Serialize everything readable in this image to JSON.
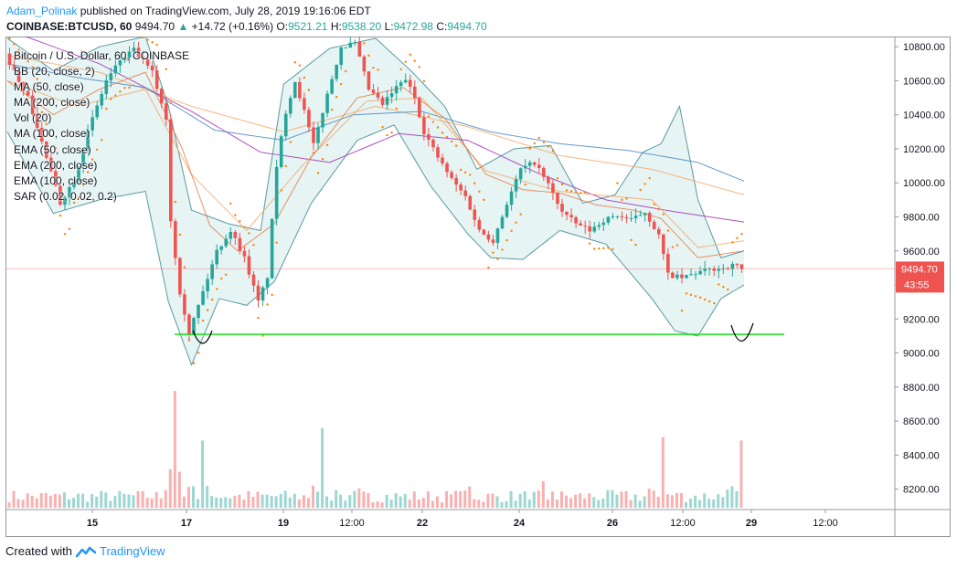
{
  "header": {
    "author": "Adam_Polinak",
    "published": "published on TradingView.com, July 28, 2019 19:16:06 EDT"
  },
  "ticker": {
    "symbol": "COINBASE:BTCUSD, 60",
    "last": "9494.70",
    "change": "+14.72 (+0.16%)",
    "open_label": "O:",
    "open": "9521.21",
    "high_label": "H:",
    "high": "9538.20",
    "low_label": "L:",
    "low": "9472.98",
    "close_label": "C:",
    "close": "9494.70"
  },
  "legend": [
    "Bitcoin / U.S. Dollar, 60, COINBASE",
    "BB (20, close, 2)",
    "MA (50, close)",
    "MA (200, close)",
    "Vol (20)",
    "MA (100, close)",
    "EMA (50, close)",
    "EMA (200, close)",
    "EMA (100, close)",
    "SAR (0.02, 0.02, 0.2)"
  ],
  "footer": {
    "created_with": "Created with",
    "brand": "TradingView"
  },
  "colors": {
    "up": "#26a69a",
    "down": "#ef5350",
    "bb": "#5b9aa0",
    "bb_fill": "#d6ecec",
    "sar": "#ff7f00",
    "ma50": "#e8743b",
    "ma200": "#9c27b0",
    "ma100": "#3f7fbf",
    "ema": "#f4a460",
    "support": "#00e600",
    "price_tag": "#ef5350"
  },
  "chart_data": {
    "type": "candlestick",
    "ylim": [
      8080,
      10860
    ],
    "y_ticks": [
      "8200.00",
      "8400.00",
      "8600.00",
      "8800.00",
      "9000.00",
      "9200.00",
      "9400.00",
      "9600.00",
      "9800.00",
      "10000.00",
      "10200.00",
      "10400.00",
      "10600.00",
      "10800.00"
    ],
    "x_ticks": [
      "15",
      "17",
      "19",
      "12:00",
      "22",
      "24",
      "26",
      "12:00",
      "29",
      "12:00"
    ],
    "last_price": 9494.7,
    "last_price_label": "9494.70",
    "countdown_label": "43:55",
    "support_level": 9110,
    "price_path": [
      [
        0,
        10760
      ],
      [
        5,
        10500
      ],
      [
        9,
        10150
      ],
      [
        12,
        9880
      ],
      [
        15,
        10020
      ],
      [
        18,
        10300
      ],
      [
        22,
        10600
      ],
      [
        25,
        10720
      ],
      [
        28,
        10780
      ],
      [
        32,
        10650
      ],
      [
        35,
        10380
      ],
      [
        36,
        9780
      ],
      [
        38,
        9360
      ],
      [
        40,
        9120
      ],
      [
        43,
        9360
      ],
      [
        46,
        9600
      ],
      [
        49,
        9720
      ],
      [
        52,
        9560
      ],
      [
        55,
        9300
      ],
      [
        57,
        9450
      ],
      [
        59,
        10100
      ],
      [
        61,
        10420
      ],
      [
        63,
        10600
      ],
      [
        65,
        10420
      ],
      [
        67,
        10220
      ],
      [
        70,
        10520
      ],
      [
        73,
        10800
      ],
      [
        76,
        10820
      ],
      [
        79,
        10550
      ],
      [
        82,
        10460
      ],
      [
        85,
        10560
      ],
      [
        87,
        10610
      ],
      [
        89,
        10500
      ],
      [
        91,
        10300
      ],
      [
        94,
        10150
      ],
      [
        97,
        10020
      ],
      [
        100,
        9920
      ],
      [
        103,
        9720
      ],
      [
        106,
        9660
      ],
      [
        109,
        9880
      ],
      [
        112,
        10080
      ],
      [
        115,
        10120
      ],
      [
        118,
        9990
      ],
      [
        121,
        9830
      ],
      [
        124,
        9760
      ],
      [
        127,
        9720
      ],
      [
        130,
        9780
      ],
      [
        133,
        9810
      ],
      [
        136,
        9780
      ],
      [
        139,
        9830
      ],
      [
        142,
        9690
      ],
      [
        144,
        9460
      ],
      [
        147,
        9440
      ],
      [
        150,
        9470
      ],
      [
        153,
        9490
      ],
      [
        156,
        9500
      ],
      [
        159,
        9520
      ],
      [
        160,
        9494.7
      ]
    ],
    "bb_upper": [
      [
        0,
        10850
      ],
      [
        10,
        10660
      ],
      [
        20,
        10800
      ],
      [
        30,
        10860
      ],
      [
        35,
        10450
      ],
      [
        40,
        9840
      ],
      [
        48,
        9760
      ],
      [
        55,
        9720
      ],
      [
        60,
        10580
      ],
      [
        70,
        10790
      ],
      [
        80,
        10850
      ],
      [
        88,
        10650
      ],
      [
        95,
        10450
      ],
      [
        102,
        10080
      ],
      [
        110,
        10200
      ],
      [
        118,
        10220
      ],
      [
        125,
        9880
      ],
      [
        132,
        9930
      ],
      [
        138,
        10180
      ],
      [
        142,
        10230
      ],
      [
        146,
        10450
      ],
      [
        150,
        9900
      ],
      [
        155,
        9560
      ],
      [
        160,
        9600
      ]
    ],
    "bb_lower": [
      [
        0,
        10300
      ],
      [
        10,
        9820
      ],
      [
        20,
        9900
      ],
      [
        30,
        9950
      ],
      [
        35,
        9300
      ],
      [
        40,
        8930
      ],
      [
        46,
        9320
      ],
      [
        52,
        9280
      ],
      [
        58,
        9420
      ],
      [
        66,
        9880
      ],
      [
        76,
        10250
      ],
      [
        84,
        10340
      ],
      [
        92,
        9980
      ],
      [
        100,
        9700
      ],
      [
        105,
        9560
      ],
      [
        112,
        9550
      ],
      [
        120,
        9720
      ],
      [
        130,
        9640
      ],
      [
        140,
        9320
      ],
      [
        145,
        9130
      ],
      [
        150,
        9100
      ],
      [
        155,
        9320
      ],
      [
        160,
        9400
      ]
    ],
    "ma50": [
      [
        0,
        10600
      ],
      [
        10,
        10400
      ],
      [
        20,
        10550
      ],
      [
        30,
        10650
      ],
      [
        38,
        10200
      ],
      [
        44,
        9750
      ],
      [
        50,
        9600
      ],
      [
        58,
        9760
      ],
      [
        66,
        10150
      ],
      [
        76,
        10500
      ],
      [
        86,
        10560
      ],
      [
        95,
        10380
      ],
      [
        104,
        10050
      ],
      [
        112,
        9960
      ],
      [
        120,
        9940
      ],
      [
        128,
        9870
      ],
      [
        136,
        9840
      ],
      [
        142,
        9790
      ],
      [
        150,
        9560
      ],
      [
        160,
        9600
      ]
    ],
    "ma100": [
      [
        0,
        10700
      ],
      [
        15,
        10620
      ],
      [
        30,
        10560
      ],
      [
        45,
        10310
      ],
      [
        60,
        10250
      ],
      [
        75,
        10400
      ],
      [
        90,
        10420
      ],
      [
        105,
        10300
      ],
      [
        120,
        10230
      ],
      [
        135,
        10190
      ],
      [
        150,
        10120
      ],
      [
        160,
        10010
      ]
    ],
    "ma200": [
      [
        0,
        10900
      ],
      [
        20,
        10700
      ],
      [
        40,
        10420
      ],
      [
        55,
        10180
      ],
      [
        70,
        10120
      ],
      [
        85,
        10290
      ],
      [
        100,
        10250
      ],
      [
        115,
        10060
      ],
      [
        130,
        9900
      ],
      [
        145,
        9830
      ],
      [
        160,
        9770
      ]
    ],
    "ema100": [
      [
        0,
        10750
      ],
      [
        20,
        10650
      ],
      [
        40,
        10450
      ],
      [
        60,
        10300
      ],
      [
        80,
        10450
      ],
      [
        100,
        10330
      ],
      [
        120,
        10160
      ],
      [
        140,
        10080
      ],
      [
        160,
        9930
      ]
    ],
    "ema50": [
      [
        0,
        10600
      ],
      [
        15,
        10450
      ],
      [
        30,
        10550
      ],
      [
        40,
        10050
      ],
      [
        52,
        9720
      ],
      [
        64,
        10100
      ],
      [
        78,
        10480
      ],
      [
        90,
        10500
      ],
      [
        104,
        10070
      ],
      [
        120,
        9950
      ],
      [
        140,
        9900
      ],
      [
        150,
        9620
      ],
      [
        160,
        9660
      ]
    ],
    "volume_range": [
      0,
      800
    ],
    "volume_peaks": [
      [
        36,
        660
      ],
      [
        42,
        380
      ],
      [
        68,
        450
      ],
      [
        76,
        110
      ],
      [
        100,
        120
      ],
      [
        116,
        150
      ],
      [
        142,
        400
      ],
      [
        159,
        380
      ]
    ]
  }
}
